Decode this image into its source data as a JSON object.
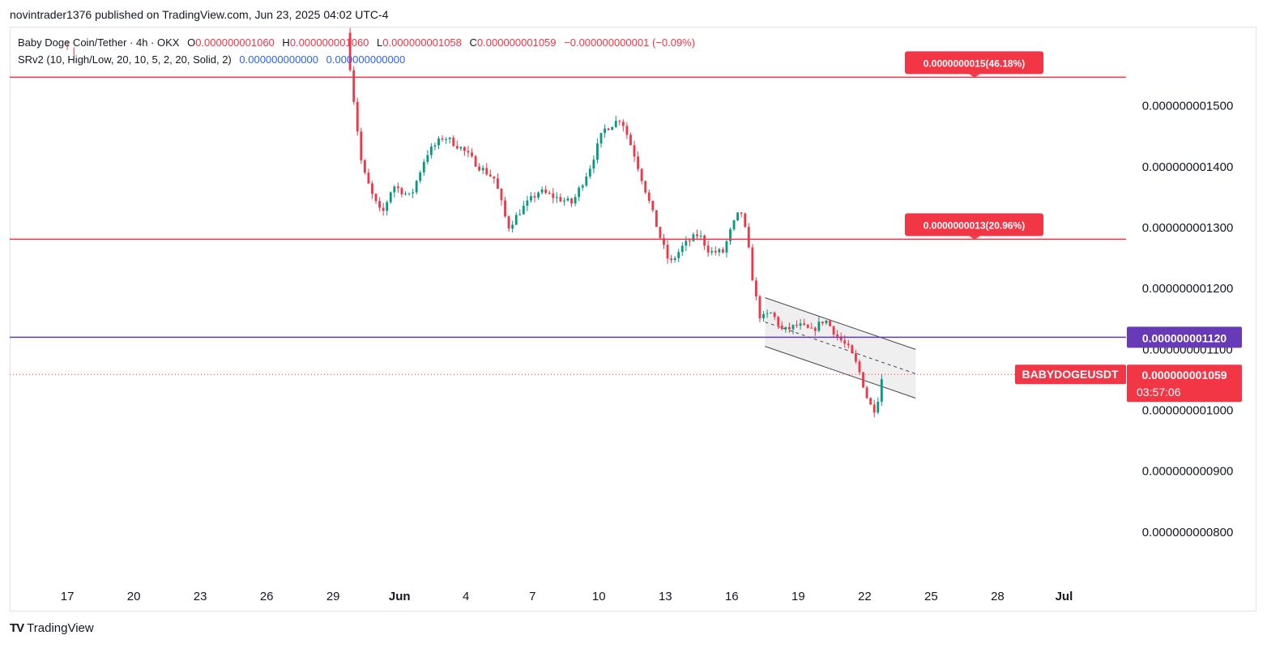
{
  "header": {
    "published": "novintrader1376 published on TradingView.com, Jun 23, 2025 04:02 UTC-4"
  },
  "legend": {
    "symbol_line": "Baby Doge Coin/Tether · 4h · OKX",
    "o_label": "O",
    "o_value": "0.000000001060",
    "h_label": "H",
    "h_value": "0.000000001060",
    "l_label": "L",
    "l_value": "0.000000001058",
    "c_label": "C",
    "c_value": "0.000000001059",
    "change": "−0.000000000001 (−0.09%)",
    "indicator": "SRv2 (10, High/Low, 20, 10, 5, 2, 20, Solid, 2)",
    "ind_val1": "0.000000000000",
    "ind_val2": "0.000000000000"
  },
  "footer": {
    "brand": "TradingView",
    "logo_text": "TV"
  },
  "colors": {
    "up": "#089981",
    "down": "#f23645",
    "purple": "#673ab7",
    "axis_text": "#131722"
  },
  "chart_data": {
    "type": "candlestick",
    "title": "Baby Doge Coin/Tether · 4h · OKX",
    "symbol": "BABYDOGEUSDT",
    "ylim": [
      7.2e-10,
      1.63e-09
    ],
    "y_ticks": [
      {
        "value": 1.5e-09,
        "label": "0.000000001500"
      },
      {
        "value": 1.4e-09,
        "label": "0.000000001400"
      },
      {
        "value": 1.3e-09,
        "label": "0.000000001300"
      },
      {
        "value": 1.2e-09,
        "label": "0.000000001200"
      },
      {
        "value": 1.1e-09,
        "label": "0.000000001100"
      },
      {
        "value": 1e-09,
        "label": "0.000000001000"
      },
      {
        "value": 9e-10,
        "label": "0.000000000900"
      },
      {
        "value": 8e-10,
        "label": "0.000000000800"
      }
    ],
    "x_ticks": [
      {
        "day": 17,
        "label": "17"
      },
      {
        "day": 20,
        "label": "20"
      },
      {
        "day": 23,
        "label": "23"
      },
      {
        "day": 26,
        "label": "26"
      },
      {
        "day": 29,
        "label": "29"
      },
      {
        "day": 32,
        "label": "Jun"
      },
      {
        "day": 35,
        "label": "4"
      },
      {
        "day": 38,
        "label": "7"
      },
      {
        "day": 41,
        "label": "10"
      },
      {
        "day": 44,
        "label": "13"
      },
      {
        "day": 47,
        "label": "16"
      },
      {
        "day": 50,
        "label": "19"
      },
      {
        "day": 53,
        "label": "22"
      },
      {
        "day": 56,
        "label": "25"
      },
      {
        "day": 59,
        "label": "28"
      },
      {
        "day": 62,
        "label": "Jul"
      }
    ],
    "x_unit": "day index from May 1, 2025",
    "x_range": [
      14.4,
      64.8
    ],
    "anchors": [
      [
        29.6,
        1.62e-09
      ],
      [
        29.9,
        1.52e-09
      ],
      [
        30.3,
        1.4e-09
      ],
      [
        30.8,
        1.35e-09
      ],
      [
        31.2,
        1.32e-09
      ],
      [
        31.7,
        1.37e-09
      ],
      [
        32.5,
        1.35e-09
      ],
      [
        33.2,
        1.42e-09
      ],
      [
        34.0,
        1.45e-09
      ],
      [
        34.8,
        1.43e-09
      ],
      [
        35.6,
        1.4e-09
      ],
      [
        36.3,
        1.38e-09
      ],
      [
        36.9,
        1.3e-09
      ],
      [
        37.5,
        1.33e-09
      ],
      [
        38.3,
        1.36e-09
      ],
      [
        39.0,
        1.35e-09
      ],
      [
        39.8,
        1.34e-09
      ],
      [
        40.6,
        1.4e-09
      ],
      [
        41.2,
        1.46e-09
      ],
      [
        42.0,
        1.48e-09
      ],
      [
        42.6,
        1.42e-09
      ],
      [
        43.2,
        1.35e-09
      ],
      [
        43.8,
        1.28e-09
      ],
      [
        44.2,
        1.24e-09
      ],
      [
        44.8,
        1.27e-09
      ],
      [
        45.5,
        1.29e-09
      ],
      [
        46.0,
        1.26e-09
      ],
      [
        46.6,
        1.26e-09
      ],
      [
        47.0,
        1.3e-09
      ],
      [
        47.4,
        1.33e-09
      ],
      [
        47.7,
        1.28e-09
      ],
      [
        48.0,
        1.2e-09
      ],
      [
        48.3,
        1.15e-09
      ],
      [
        48.8,
        1.16e-09
      ],
      [
        49.3,
        1.13e-09
      ],
      [
        50.0,
        1.14e-09
      ],
      [
        50.6,
        1.13e-09
      ],
      [
        51.2,
        1.15e-09
      ],
      [
        51.8,
        1.12e-09
      ],
      [
        52.3,
        1.1e-09
      ],
      [
        52.7,
        1.07e-09
      ],
      [
        53.2,
        1.01e-09
      ],
      [
        53.5,
        1e-09
      ],
      [
        53.8,
        1.059e-09
      ]
    ],
    "horizontal_lines": [
      {
        "value": 1.547e-09,
        "color": "#f23645",
        "label": "0.0000000015(46.18%)",
        "style": "solid"
      },
      {
        "value": 1.281e-09,
        "color": "#f23645",
        "label": "0.0000000013(20.96%)",
        "style": "solid"
      },
      {
        "value": 1.12e-09,
        "color": "#673ab7",
        "label": "0.000000001120",
        "style": "solid"
      },
      {
        "value": 1.059e-09,
        "color": "#f23645",
        "label": "",
        "style": "dotted"
      }
    ],
    "channel": {
      "start_day": 48.5,
      "end_day": 55.3,
      "upper_start": 1.185e-09,
      "upper_end": 1.1e-09,
      "lower_start": 1.105e-09,
      "lower_end": 1.02e-09
    },
    "last_price": {
      "symbol_label": "BABYDOGEUSDT",
      "value_label": "0.000000001059",
      "countdown": "03:57:06",
      "value": 1.059e-09
    },
    "seed": 7
  }
}
